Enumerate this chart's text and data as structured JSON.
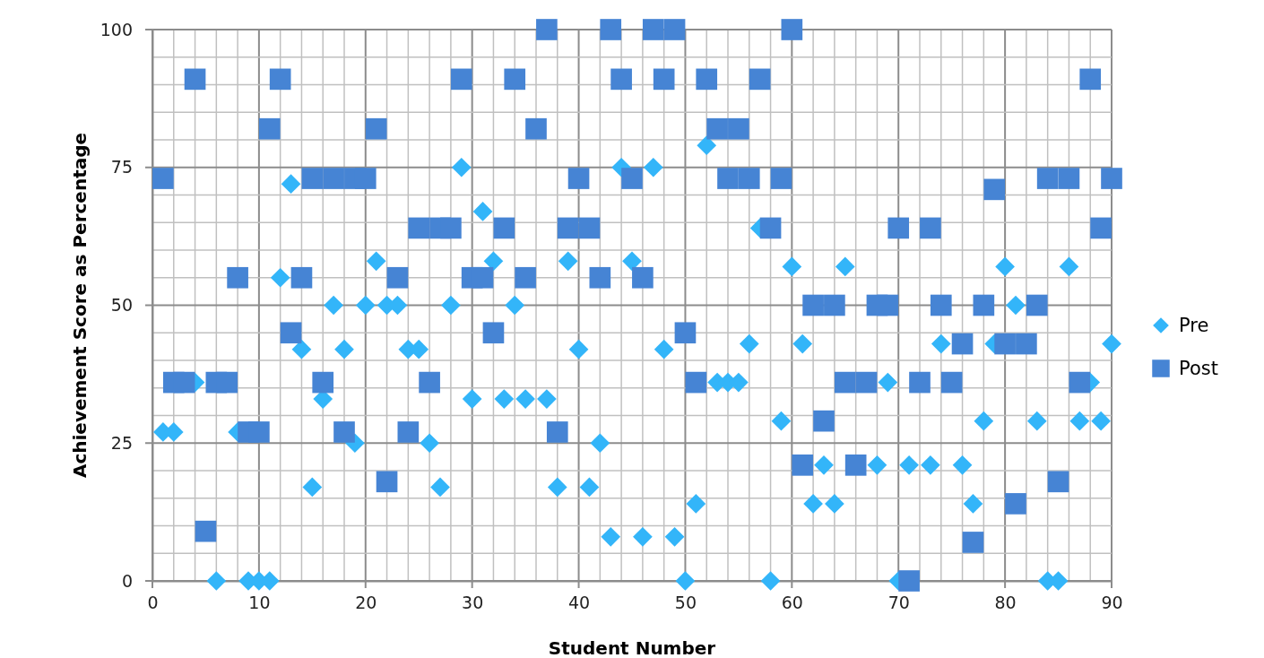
{
  "chart_data": {
    "type": "scatter",
    "xlabel": "Student Number",
    "ylabel": "Achievement Score as Percentage",
    "x": [
      1,
      2,
      3,
      4,
      5,
      6,
      7,
      8,
      9,
      10,
      11,
      12,
      13,
      14,
      15,
      16,
      17,
      18,
      19,
      20,
      21,
      22,
      23,
      24,
      25,
      26,
      27,
      28,
      29,
      30,
      31,
      32,
      33,
      34,
      35,
      36,
      37,
      38,
      39,
      40,
      41,
      42,
      43,
      44,
      45,
      46,
      47,
      48,
      49,
      50,
      51,
      52,
      53,
      54,
      55,
      56,
      57,
      58,
      59,
      60,
      61,
      62,
      63,
      64,
      65,
      66,
      67,
      68,
      69,
      70,
      71,
      72,
      73,
      74,
      75,
      76,
      77,
      78,
      79,
      80,
      81,
      82,
      83,
      84,
      85,
      86,
      87,
      88,
      89,
      90
    ],
    "series": [
      {
        "name": "Pre",
        "color": "#33b5f9",
        "marker": "diamond",
        "values": [
          27,
          27,
          null,
          36,
          null,
          0,
          null,
          27,
          0,
          0,
          0,
          55,
          72,
          42,
          17,
          33,
          50,
          42,
          25,
          50,
          58,
          50,
          50,
          42,
          42,
          25,
          17,
          50,
          75,
          33,
          67,
          58,
          33,
          50,
          33,
          null,
          33,
          17,
          58,
          42,
          17,
          25,
          8,
          75,
          58,
          8,
          75,
          42,
          8,
          0,
          14,
          79,
          36,
          36,
          36,
          43,
          64,
          0,
          29,
          57,
          43,
          14,
          21,
          14,
          57,
          null,
          null,
          21,
          36,
          0,
          21,
          null,
          21,
          43,
          null,
          21,
          14,
          29,
          43,
          57,
          50,
          null,
          29,
          0,
          0,
          57,
          29,
          36,
          29,
          43
        ]
      },
      {
        "name": "Post",
        "color": "#4684d4",
        "marker": "square",
        "values": [
          73,
          36,
          36,
          91,
          9,
          36,
          36,
          55,
          27,
          27,
          82,
          91,
          45,
          55,
          73,
          36,
          73,
          27,
          73,
          73,
          82,
          18,
          55,
          27,
          64,
          36,
          64,
          64,
          91,
          55,
          55,
          45,
          64,
          91,
          55,
          82,
          100,
          27,
          64,
          73,
          64,
          55,
          100,
          91,
          73,
          55,
          100,
          91,
          100,
          45,
          36,
          91,
          82,
          73,
          82,
          73,
          91,
          64,
          73,
          100,
          21,
          50,
          29,
          50,
          36,
          21,
          36,
          50,
          50,
          64,
          0,
          36,
          64,
          50,
          36,
          43,
          7,
          50,
          71,
          43,
          14,
          43,
          50,
          73,
          18,
          73,
          36,
          91,
          64,
          73
        ]
      }
    ],
    "xlim": [
      0,
      90
    ],
    "ylim": [
      0,
      100
    ],
    "xticks": [
      0,
      {
        "value": 2,
        "label": null
      },
      {
        "value": 4,
        "label": null
      },
      {
        "value": 6,
        "label": null
      },
      {
        "value": 8,
        "label": null
      },
      10,
      {
        "value": 12,
        "label": null
      },
      {
        "value": 14,
        "label": null
      },
      {
        "value": 16,
        "label": null
      },
      {
        "value": 18,
        "label": null
      },
      20,
      {
        "value": 22,
        "label": null
      },
      {
        "value": 24,
        "label": null
      },
      {
        "value": 26,
        "label": null
      },
      {
        "value": 28,
        "label": null
      },
      30,
      {
        "value": 32,
        "label": null
      },
      {
        "value": 34,
        "label": null
      },
      {
        "value": 36,
        "label": null
      },
      {
        "value": 38,
        "label": null
      },
      40,
      {
        "value": 42,
        "label": null
      },
      {
        "value": 44,
        "label": null
      },
      {
        "value": 46,
        "label": null
      },
      {
        "value": 48,
        "label": null
      },
      50,
      {
        "value": 52,
        "label": null
      },
      {
        "value": 54,
        "label": null
      },
      {
        "value": 56,
        "label": null
      },
      {
        "value": 58,
        "label": null
      },
      60,
      {
        "value": 62,
        "label": null
      },
      {
        "value": 64,
        "label": null
      },
      {
        "value": 66,
        "label": null
      },
      {
        "value": 68,
        "label": null
      },
      70,
      {
        "value": 72,
        "label": null
      },
      {
        "value": 74,
        "label": null
      },
      {
        "value": 76,
        "label": null
      },
      {
        "value": 78,
        "label": null
      },
      80,
      {
        "value": 82,
        "label": null
      },
      {
        "value": 84,
        "label": null
      },
      {
        "value": 86,
        "label": null
      },
      {
        "value": 88,
        "label": null
      },
      90
    ],
    "yticks": [
      0,
      {
        "value": 5,
        "label": null
      },
      {
        "value": 10,
        "label": null
      },
      {
        "value": 15,
        "label": null
      },
      {
        "value": 20,
        "label": null
      },
      25,
      {
        "value": 30,
        "label": null
      },
      {
        "value": 35,
        "label": null
      },
      {
        "value": 40,
        "label": null
      },
      {
        "value": 45,
        "label": null
      },
      50,
      {
        "value": 55,
        "label": null
      },
      {
        "value": 60,
        "label": null
      },
      {
        "value": 65,
        "label": null
      },
      {
        "value": 70,
        "label": null
      },
      75,
      {
        "value": 80,
        "label": null
      },
      {
        "value": 85,
        "label": null
      },
      {
        "value": 90,
        "label": null
      },
      {
        "value": 95,
        "label": null
      },
      100
    ],
    "grid": true,
    "legend": "right"
  }
}
